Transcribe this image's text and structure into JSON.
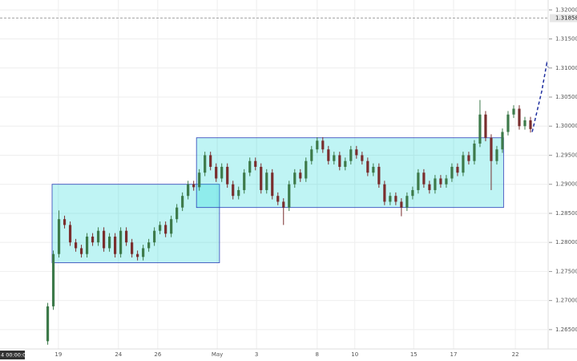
{
  "chart_data": {
    "type": "candlestick",
    "xlim": [
      -8.5,
      89
    ],
    "ylim": [
      1.2596,
      1.3217
    ],
    "grid": true,
    "up_color": "#3d7a4a",
    "down_color": "#7a2e2e",
    "xticks": [
      {
        "value": 1.9,
        "label": "19"
      },
      {
        "value": 12.6,
        "label": "24"
      },
      {
        "value": 19.6,
        "label": "26"
      },
      {
        "value": 30.2,
        "label": "May"
      },
      {
        "value": 37.2,
        "label": "3"
      },
      {
        "value": 48.0,
        "label": "8"
      },
      {
        "value": 54.7,
        "label": "10"
      },
      {
        "value": 65.2,
        "label": "15"
      },
      {
        "value": 72.3,
        "label": "17"
      },
      {
        "value": 83.3,
        "label": "22"
      }
    ],
    "yticks": [
      {
        "value": 1.265,
        "label": "1.26500"
      },
      {
        "value": 1.27,
        "label": "1.27000"
      },
      {
        "value": 1.275,
        "label": "1.27500"
      },
      {
        "value": 1.28,
        "label": "1.28000"
      },
      {
        "value": 1.285,
        "label": "1.28500"
      },
      {
        "value": 1.29,
        "label": "1.29000"
      },
      {
        "value": 1.295,
        "label": "1.29500"
      },
      {
        "value": 1.3,
        "label": "1.30000"
      },
      {
        "value": 1.305,
        "label": "1.30500"
      },
      {
        "value": 1.31,
        "label": "1.31000"
      },
      {
        "value": 1.315,
        "label": "1.31500"
      },
      {
        "value": 1.32,
        "label": "1.32000"
      }
    ],
    "open": [
      1.263,
      1.269,
      1.278,
      1.284,
      1.283,
      1.28,
      1.279,
      1.278,
      1.281,
      1.28,
      1.282,
      1.279,
      1.281,
      1.278,
      1.282,
      1.28,
      1.278,
      1.2775,
      1.279,
      1.28,
      1.282,
      1.283,
      1.2815,
      1.284,
      1.286,
      1.288,
      1.29,
      1.2895,
      1.292,
      1.295,
      1.293,
      1.291,
      1.293,
      1.29,
      1.288,
      1.289,
      1.292,
      1.294,
      1.293,
      1.289,
      1.292,
      1.288,
      1.287,
      1.286,
      1.29,
      1.292,
      1.291,
      1.294,
      1.296,
      1.2975,
      1.296,
      1.294,
      1.295,
      1.293,
      1.294,
      1.296,
      1.295,
      1.294,
      1.292,
      1.293,
      1.29,
      1.287,
      1.288,
      1.287,
      1.286,
      1.288,
      1.289,
      1.292,
      1.29,
      1.289,
      1.291,
      1.29,
      1.291,
      1.293,
      1.292,
      1.295,
      1.294,
      1.297,
      1.302,
      1.298,
      1.294,
      1.296,
      1.299,
      1.302,
      1.303,
      1.3,
      1.301
    ],
    "high": [
      1.2696,
      1.2786,
      1.2855,
      1.2846,
      1.2836,
      1.2806,
      1.2796,
      1.2816,
      1.2816,
      1.2826,
      1.2826,
      1.2816,
      1.2816,
      1.2826,
      1.2826,
      1.2806,
      1.2786,
      1.2796,
      1.2806,
      1.2826,
      1.2836,
      1.2836,
      1.2846,
      1.2866,
      1.2886,
      1.2906,
      1.2906,
      1.2926,
      1.2956,
      1.2956,
      1.2936,
      1.2936,
      1.2936,
      1.2906,
      1.2896,
      1.2926,
      1.2946,
      1.2946,
      1.2936,
      1.2926,
      1.2926,
      1.2886,
      1.2876,
      1.2906,
      1.2926,
      1.2926,
      1.2946,
      1.2966,
      1.2981,
      1.2981,
      1.2966,
      1.2956,
      1.2956,
      1.2946,
      1.2966,
      1.2966,
      1.2956,
      1.2946,
      1.2936,
      1.2936,
      1.2906,
      1.2886,
      1.2886,
      1.2876,
      1.2886,
      1.2896,
      1.2926,
      1.2926,
      1.2906,
      1.2916,
      1.2916,
      1.2916,
      1.2936,
      1.2936,
      1.2956,
      1.2956,
      1.2976,
      1.3045,
      1.3026,
      1.2986,
      1.2966,
      1.2996,
      1.3026,
      1.3036,
      1.3036,
      1.3016,
      1.3016
    ],
    "low": [
      1.2624,
      1.2684,
      1.2774,
      1.2824,
      1.2794,
      1.2784,
      1.2774,
      1.2774,
      1.2794,
      1.2794,
      1.2784,
      1.2784,
      1.2774,
      1.2774,
      1.2794,
      1.2774,
      1.2769,
      1.2769,
      1.2784,
      1.2794,
      1.2814,
      1.2809,
      1.2809,
      1.2834,
      1.2854,
      1.2874,
      1.2889,
      1.2889,
      1.2914,
      1.2924,
      1.2904,
      1.2904,
      1.2894,
      1.2874,
      1.2874,
      1.2884,
      1.2914,
      1.2924,
      1.2884,
      1.2884,
      1.2874,
      1.2864,
      1.283,
      1.2854,
      1.2894,
      1.2904,
      1.2904,
      1.2934,
      1.2954,
      1.2954,
      1.2934,
      1.2934,
      1.2924,
      1.2924,
      1.2934,
      1.2944,
      1.2934,
      1.2914,
      1.2914,
      1.2894,
      1.2864,
      1.2864,
      1.2864,
      1.2845,
      1.2854,
      1.2874,
      1.2884,
      1.2894,
      1.2884,
      1.2884,
      1.2894,
      1.2894,
      1.2904,
      1.2914,
      1.2914,
      1.2934,
      1.2934,
      1.2964,
      1.2974,
      1.289,
      1.2934,
      1.2954,
      1.2984,
      1.3014,
      1.2994,
      1.2994,
      1.2989
    ],
    "close": [
      1.269,
      1.278,
      1.284,
      1.283,
      1.28,
      1.279,
      1.278,
      1.281,
      1.28,
      1.282,
      1.279,
      1.281,
      1.278,
      1.282,
      1.28,
      1.278,
      1.2775,
      1.279,
      1.28,
      1.282,
      1.283,
      1.2815,
      1.284,
      1.286,
      1.288,
      1.29,
      1.2895,
      1.292,
      1.295,
      1.293,
      1.291,
      1.293,
      1.29,
      1.288,
      1.289,
      1.292,
      1.294,
      1.293,
      1.289,
      1.292,
      1.288,
      1.287,
      1.286,
      1.29,
      1.292,
      1.291,
      1.294,
      1.296,
      1.2975,
      1.296,
      1.294,
      1.295,
      1.293,
      1.294,
      1.296,
      1.295,
      1.294,
      1.292,
      1.293,
      1.29,
      1.287,
      1.288,
      1.287,
      1.286,
      1.288,
      1.289,
      1.292,
      1.29,
      1.289,
      1.291,
      1.29,
      1.291,
      1.293,
      1.292,
      1.295,
      1.294,
      1.297,
      1.302,
      1.298,
      1.294,
      1.296,
      1.299,
      1.302,
      1.303,
      1.3,
      1.301,
      1.2995
    ],
    "boxes": [
      {
        "x": [
          0.78,
          30.6
        ],
        "y": [
          1.2765,
          1.29
        ],
        "color": "#00d4d4"
      },
      {
        "x": [
          26.5,
          81.2
        ],
        "y": [
          1.286,
          1.298
        ],
        "color": "#00d4d4"
      }
    ],
    "projection": {
      "x": [
        86.3,
        88.0,
        88.9,
        89.2
      ],
      "y": [
        1.299,
        1.306,
        1.3108,
        1.31
      ],
      "color": "#1f2f9f"
    },
    "price_line": {
      "value": 1.31858,
      "label": "1.31858"
    },
    "crosshair_label": "4 00:00:00"
  }
}
